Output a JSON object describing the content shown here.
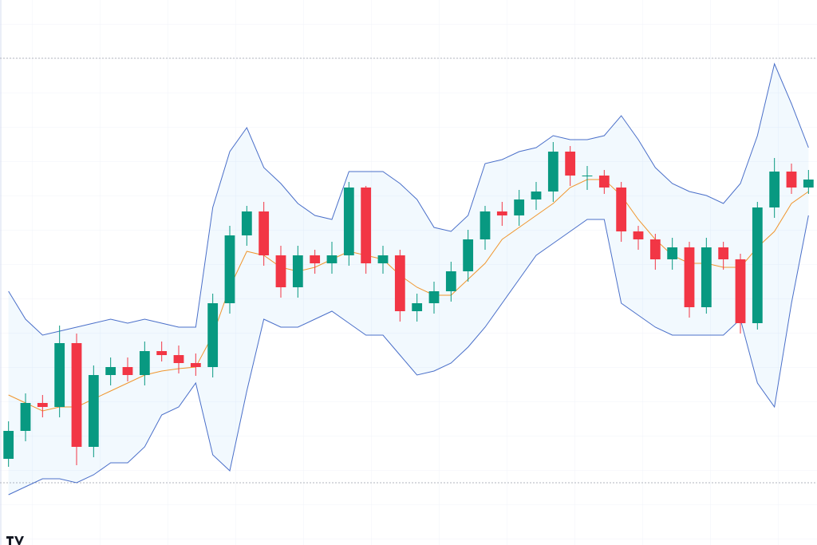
{
  "chart_data": {
    "type": "candlestick",
    "open": [
      108,
      143,
      178,
      173,
      253,
      123,
      213,
      223,
      213,
      243,
      238,
      228,
      223,
      303,
      388,
      418,
      363,
      323,
      363,
      353,
      363,
      448,
      353,
      363,
      293,
      303,
      318,
      343,
      383,
      418,
      413,
      433,
      443,
      493,
      463,
      463,
      448,
      393,
      383,
      358,
      373,
      298,
      373,
      358,
      278,
      423,
      468,
      448
    ],
    "high": [
      155,
      190,
      188,
      275,
      265,
      225,
      235,
      235,
      255,
      255,
      250,
      240,
      315,
      400,
      425,
      430,
      375,
      375,
      370,
      380,
      455,
      450,
      375,
      370,
      315,
      330,
      355,
      395,
      425,
      430,
      445,
      455,
      505,
      500,
      475,
      470,
      455,
      400,
      390,
      385,
      380,
      385,
      380,
      365,
      430,
      485,
      478,
      470
    ],
    "low": [
      98,
      130,
      160,
      160,
      100,
      110,
      200,
      205,
      200,
      230,
      215,
      212,
      210,
      290,
      375,
      350,
      310,
      310,
      340,
      340,
      350,
      340,
      340,
      280,
      280,
      290,
      305,
      330,
      370,
      400,
      400,
      420,
      430,
      450,
      445,
      440,
      380,
      370,
      345,
      345,
      285,
      290,
      345,
      265,
      270,
      410,
      440,
      440
    ],
    "close": [
      143,
      178,
      173,
      253,
      123,
      213,
      223,
      213,
      243,
      238,
      228,
      223,
      303,
      388,
      418,
      363,
      323,
      363,
      353,
      363,
      448,
      353,
      363,
      293,
      303,
      318,
      343,
      383,
      418,
      413,
      433,
      443,
      493,
      463,
      463,
      448,
      393,
      383,
      358,
      373,
      298,
      373,
      358,
      278,
      423,
      468,
      448,
      458
    ],
    "up_color": "#089981",
    "down_color": "#f23645",
    "bands": {
      "upper": [
        318,
        283,
        263,
        268,
        273,
        278,
        283,
        278,
        283,
        278,
        273,
        273,
        423,
        493,
        523,
        473,
        453,
        428,
        413,
        408,
        468,
        468,
        468,
        453,
        433,
        398,
        393,
        413,
        478,
        483,
        493,
        498,
        513,
        508,
        508,
        513,
        538,
        508,
        473,
        453,
        443,
        438,
        428,
        453,
        513,
        603,
        553,
        498
      ],
      "middle": [
        188,
        178,
        168,
        173,
        173,
        183,
        193,
        203,
        213,
        218,
        221,
        223,
        263,
        323,
        368,
        363,
        348,
        343,
        348,
        358,
        368,
        363,
        358,
        338,
        323,
        313,
        313,
        333,
        353,
        383,
        398,
        413,
        428,
        448,
        458,
        458,
        438,
        408,
        383,
        363,
        353,
        353,
        348,
        348,
        373,
        393,
        428,
        443
      ],
      "lower": [
        63,
        73,
        83,
        83,
        78,
        88,
        103,
        103,
        123,
        163,
        173,
        203,
        113,
        93,
        193,
        283,
        273,
        273,
        283,
        293,
        278,
        263,
        263,
        238,
        213,
        218,
        228,
        248,
        273,
        303,
        333,
        363,
        378,
        393,
        408,
        408,
        303,
        288,
        273,
        263,
        263,
        263,
        263,
        283,
        203,
        173,
        303,
        413
      ],
      "line_color": "#4a6fc9",
      "middle_color": "#f0962e",
      "fill": "rgba(33,150,243,0.06)"
    },
    "hlines": [
      610,
      78
    ],
    "ylim": [
      0,
      683
    ]
  }
}
